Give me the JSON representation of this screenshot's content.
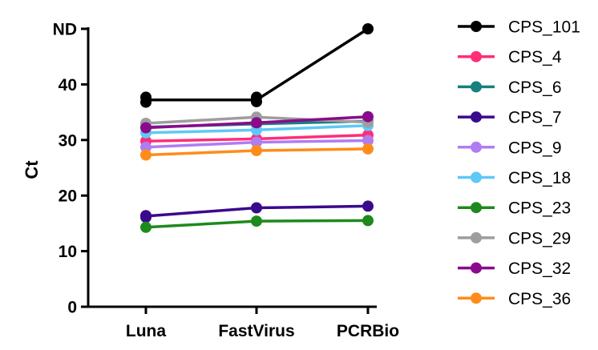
{
  "chart_data": {
    "type": "line",
    "categories": [
      "Luna",
      "FastVirus",
      "PCRBio"
    ],
    "ylabel": "Ct",
    "ylim": [
      0,
      50
    ],
    "yticks": [
      {
        "value": 0,
        "label": "0"
      },
      {
        "value": 10,
        "label": "10"
      },
      {
        "value": 20,
        "label": "20"
      },
      {
        "value": 30,
        "label": "30"
      },
      {
        "value": 40,
        "label": "40"
      },
      {
        "value": 50,
        "label": "ND"
      }
    ],
    "legend_position": "right",
    "series": [
      {
        "name": "CPS_101",
        "color": "#000000",
        "values": [
          37.2,
          37.2,
          50
        ],
        "replicates": [
          [
            37.7,
            36.8
          ],
          [
            37.7,
            36.9
          ],
          [
            50
          ]
        ]
      },
      {
        "name": "CPS_4",
        "color": "#ff2d78",
        "values": [
          29.8,
          30.2,
          30.9
        ]
      },
      {
        "name": "CPS_6",
        "color": "#17807e",
        "values": [
          32.3,
          32.9,
          33.4
        ]
      },
      {
        "name": "CPS_7",
        "color": "#3a0a8c",
        "values": [
          16.3,
          17.8,
          18.1
        ],
        "replicates": [
          [
            16.4,
            16.1
          ],
          [
            17.8
          ],
          [
            18.1
          ]
        ]
      },
      {
        "name": "CPS_9",
        "color": "#b07cf2",
        "values": [
          28.7,
          29.6,
          29.9
        ]
      },
      {
        "name": "CPS_18",
        "color": "#5ec8f7",
        "values": [
          31.3,
          31.8,
          32.6
        ]
      },
      {
        "name": "CPS_23",
        "color": "#1d8a1d",
        "values": [
          14.3,
          15.4,
          15.5
        ]
      },
      {
        "name": "CPS_29",
        "color": "#9e9e9e",
        "values": [
          33.0,
          34.1,
          33.2
        ]
      },
      {
        "name": "CPS_32",
        "color": "#8a0a8c",
        "values": [
          32.2,
          33.1,
          34.2
        ]
      },
      {
        "name": "CPS_36",
        "color": "#ff8c1a",
        "values": [
          27.3,
          28.1,
          28.4
        ]
      }
    ]
  }
}
